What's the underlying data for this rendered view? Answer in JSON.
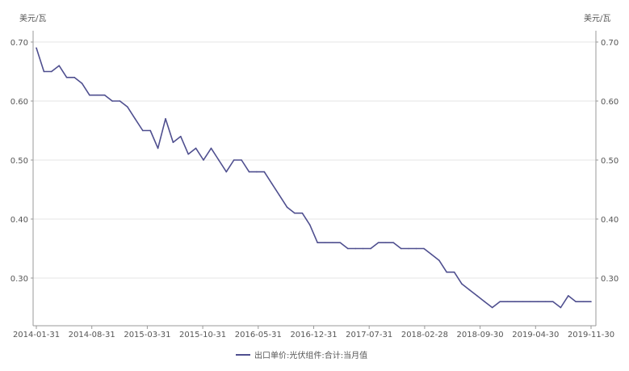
{
  "chart_data": {
    "type": "line",
    "unit_left": "美元/瓦",
    "unit_right": "美元/瓦",
    "ylim": [
      0.2,
      0.72
    ],
    "yticks": [
      "0.70",
      "0.60",
      "0.50",
      "0.40",
      "0.30"
    ],
    "xticks": [
      "2014-01-31",
      "2014-08-31",
      "2015-03-31",
      "2015-10-31",
      "2016-05-31",
      "2016-12-31",
      "2017-07-31",
      "2018-02-28",
      "2018-09-30",
      "2019-04-30",
      "2019-11-30"
    ],
    "grid": "horizontal",
    "legend_position": "bottom",
    "color": "#4f4f8f",
    "series": [
      {
        "name": "出口单价:光伏组件:合计:当月值",
        "values": [
          0.69,
          0.65,
          0.65,
          0.66,
          0.64,
          0.64,
          0.63,
          0.61,
          0.61,
          0.61,
          0.6,
          0.6,
          0.59,
          0.57,
          0.55,
          0.55,
          0.52,
          0.57,
          0.53,
          0.54,
          0.51,
          0.52,
          0.5,
          0.52,
          0.5,
          0.48,
          0.5,
          0.5,
          0.48,
          0.48,
          0.48,
          0.46,
          0.44,
          0.42,
          0.41,
          0.41,
          0.39,
          0.36,
          0.36,
          0.36,
          0.36,
          0.35,
          0.35,
          0.35,
          0.35,
          0.36,
          0.36,
          0.36,
          0.35,
          0.35,
          0.35,
          0.35,
          0.34,
          0.33,
          0.31,
          0.31,
          0.29,
          0.28,
          0.27,
          0.26,
          0.25,
          0.26,
          0.26,
          0.26,
          0.26,
          0.26,
          0.26,
          0.26,
          0.26,
          0.25,
          0.27,
          0.26,
          0.26,
          0.26
        ]
      }
    ]
  }
}
